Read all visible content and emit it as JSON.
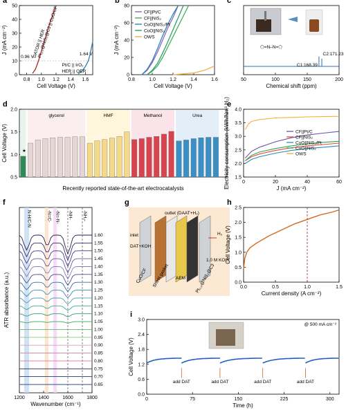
{
  "panels": [
    {
      "id": "a",
      "label": "a",
      "type": "line",
      "xlabel": "Cell Voltage (V)",
      "ylabel": "J (mA cm⁻²)",
      "xlim": [
        0.7,
        1.7
      ],
      "ylim": [
        0,
        50
      ],
      "xticks": [
        "0.8",
        "1.0",
        "1.2",
        "1.4",
        "1.6"
      ],
      "yticks": [
        "0",
        "10",
        "20",
        "30",
        "40",
        "50"
      ],
      "ref_line_y": 10,
      "annotations": [
        "DATOR || HER",
        "Pt₁,₀@NiS₂@C3 || CuO/CF",
        "0.96 V",
        "1.64 V",
        "Pt/C || IrO₂",
        "HER || OER"
      ],
      "series": [
        {
          "name": "DATOR || HER",
          "color": "#b22222",
          "x": [
            0.88,
            0.92,
            0.96,
            1.0,
            1.04,
            1.08,
            1.12,
            1.16,
            1.2
          ],
          "y": [
            1,
            4,
            10,
            17,
            24,
            31,
            38,
            44,
            50
          ]
        },
        {
          "name": "HER || OER",
          "color": "#2a7fa8",
          "x": [
            1.5,
            1.56,
            1.6,
            1.64,
            1.66,
            1.68,
            1.7
          ],
          "y": [
            0.5,
            3,
            6,
            10,
            14,
            19,
            24
          ]
        }
      ]
    },
    {
      "id": "b",
      "label": "b",
      "type": "line",
      "xlabel": "Cell Voltage (V)",
      "ylabel": "J (mA cm⁻²)",
      "xlim": [
        0.8,
        1.6
      ],
      "ylim": [
        0,
        80
      ],
      "xticks": [
        "0.8",
        "1.0",
        "1.2",
        "1.4",
        "1.6"
      ],
      "yticks": [
        "0",
        "20",
        "40",
        "60",
        "80"
      ],
      "series": [
        {
          "name": "CF||Pt/C",
          "color": "#8c6bb1",
          "x": [
            0.9,
            0.95,
            1.0,
            1.05,
            1.1,
            1.15,
            1.2,
            1.25
          ],
          "y": [
            0,
            5,
            14,
            26,
            40,
            54,
            66,
            80
          ]
        },
        {
          "name": "CF||NiS₂",
          "color": "#41ab5d",
          "x": [
            0.95,
            1.0,
            1.05,
            1.1,
            1.15,
            1.2,
            1.25,
            1.3,
            1.35
          ],
          "y": [
            0,
            4,
            10,
            20,
            32,
            44,
            56,
            68,
            80
          ]
        },
        {
          "name": "CuO||NiS₂/Pt",
          "color": "#3182bd",
          "x": [
            0.9,
            0.95,
            1.0,
            1.05,
            1.1,
            1.15,
            1.2,
            1.25
          ],
          "y": [
            0,
            6,
            16,
            30,
            45,
            58,
            70,
            80
          ]
        },
        {
          "name": "CuO||NiS₂",
          "color": "#2ca25f",
          "x": [
            0.95,
            1.0,
            1.05,
            1.1,
            1.15,
            1.2,
            1.25,
            1.3
          ],
          "y": [
            0,
            5,
            13,
            25,
            38,
            52,
            66,
            80
          ]
        },
        {
          "name": "OWS",
          "color": "#f0b040",
          "x": [
            1.2,
            1.3,
            1.4,
            1.5,
            1.6
          ],
          "y": [
            0,
            1,
            2,
            5,
            10
          ]
        }
      ]
    },
    {
      "id": "c",
      "label": "c",
      "type": "line",
      "xlabel": "Chemical shift (ppm)",
      "xlim": [
        50,
        200
      ],
      "xticks": [
        "50",
        "100",
        "150",
        "200"
      ],
      "peaks": [
        {
          "label": "C1:168.39",
          "x": 168.39,
          "h": 0.9
        },
        {
          "label": "C2:171.23",
          "x": 171.23,
          "h": 0.7
        }
      ]
    },
    {
      "id": "d",
      "label": "d",
      "type": "bar",
      "ylabel": "Cell Voltage (V)",
      "xlabel": "Recently reported state-of-the-art electrocatalysts",
      "ylim": [
        0.5,
        2.0
      ],
      "yticks": [
        "0.5",
        "1.0",
        "1.5",
        "2.0"
      ],
      "groups": [
        {
          "name": "",
          "color": "#2e8b57",
          "bg": "#e8f4ea",
          "values": [
            0.96
          ]
        },
        {
          "name": "glycerol",
          "color": "#e6d5d5",
          "bg": "#fbeeee",
          "values": [
            1.25,
            1.32,
            1.35,
            1.37,
            1.38,
            1.38,
            1.39,
            1.39
          ]
        },
        {
          "name": "HMF",
          "color": "#f5d98a",
          "bg": "#fff6dc",
          "values": [
            1.25,
            1.3,
            1.33,
            1.36,
            1.4,
            1.5
          ]
        },
        {
          "name": "Methanol",
          "color": "#d9434e",
          "bg": "#fbe3ea",
          "values": [
            1.33,
            1.35,
            1.38,
            1.4,
            1.45,
            1.51
          ]
        },
        {
          "name": "Urea",
          "color": "#3a8fc4",
          "bg": "#e3eff8",
          "values": [
            1.3,
            1.32,
            1.35,
            1.37,
            1.38,
            1.38
          ]
        }
      ]
    },
    {
      "id": "e",
      "label": "e",
      "type": "line",
      "xlabel": "J (mA cm⁻²)",
      "ylabel": "Electricity consumption (kWh/Nm³ H₂)",
      "xlim": [
        0,
        60
      ],
      "ylim": [
        1.5,
        4.0
      ],
      "xticks": [
        "0",
        "20",
        "40",
        "60"
      ],
      "yticks": [
        "1.5",
        "2.0",
        "2.5",
        "3.0",
        "3.5",
        "4.0"
      ],
      "series": [
        {
          "name": "CF||Pt/C",
          "color": "#6a51a3",
          "x": [
            1,
            5,
            10,
            20,
            30,
            40,
            50,
            60
          ],
          "y": [
            2.2,
            2.45,
            2.6,
            2.8,
            2.95,
            3.05,
            3.12,
            3.18
          ]
        },
        {
          "name": "CF||NiS₂",
          "color": "#e34a33",
          "x": [
            1,
            5,
            10,
            20,
            30,
            40,
            50,
            60
          ],
          "y": [
            2.1,
            2.25,
            2.35,
            2.48,
            2.58,
            2.65,
            2.7,
            2.75
          ]
        },
        {
          "name": "CuO||NiS₂/Pt",
          "color": "#2b8cbe",
          "x": [
            1,
            5,
            10,
            20,
            30,
            40,
            50,
            60
          ],
          "y": [
            2.0,
            2.15,
            2.25,
            2.38,
            2.48,
            2.55,
            2.6,
            2.65
          ]
        },
        {
          "name": "CuO||NiS₂",
          "color": "#31a354",
          "x": [
            1,
            5,
            10,
            20,
            30,
            40,
            50,
            60
          ],
          "y": [
            2.1,
            2.3,
            2.42,
            2.55,
            2.65,
            2.72,
            2.78,
            2.82
          ]
        },
        {
          "name": "OWS",
          "color": "#f2b134",
          "x": [
            1,
            3,
            5,
            10,
            20,
            30,
            40,
            50,
            60
          ],
          "y": [
            3.25,
            3.45,
            3.55,
            3.62,
            3.68,
            3.7,
            3.72,
            3.73,
            3.74
          ]
        }
      ]
    },
    {
      "id": "f",
      "label": "f",
      "type": "line",
      "xlabel": "Wavenumber (cm⁻¹)",
      "ylabel": "ATR absorbance (a.u.)",
      "xlim": [
        1200,
        1800
      ],
      "xticks": [
        "1200",
        "1400",
        "1600",
        "1800"
      ],
      "band_labels": [
        "N-H/C-N",
        "-N=C-",
        "-N=-N-",
        "-NH-",
        "-NH₂-"
      ],
      "voltages": [
        "1.60",
        "1.55",
        "1.50",
        "1.45",
        "1.40",
        "1.35",
        "1.30",
        "1.25",
        "1.20",
        "1.15",
        "1.10",
        "1.05",
        "1.00",
        "0.95",
        "0.90",
        "0.85",
        "0.80",
        "0.75",
        "0.70",
        "0.65"
      ],
      "colors": [
        "#2b1b4d",
        "#3e2a6e",
        "#4b3b86",
        "#6a5a9e",
        "#8a7bb5",
        "#4a4f8f",
        "#3b6ea5",
        "#3c8cb5",
        "#4aa0b0",
        "#3aaa9a",
        "#2e9a78",
        "#3aa860",
        "#5aba58",
        "#8ec96a",
        "#c7a7c8",
        "#d58aa8",
        "#e07a8a",
        "#1c2a55",
        "#223b6e",
        "#2d4e88"
      ]
    },
    {
      "id": "g",
      "label": "g",
      "labels": [
        "outlet (DAAT+H₂)",
        "inlet",
        "DAT+KOH",
        "CuO/CF",
        "Sheet gasket",
        "AEM",
        "Pt₁,₀@NiS₂@C3",
        "H₂",
        "1.0 M KOH"
      ]
    },
    {
      "id": "h",
      "label": "h",
      "type": "line",
      "xlabel": "Current density (A cm⁻²)",
      "ylabel": "Cell Voltage (V)",
      "xlim": [
        0,
        1.5
      ],
      "ylim": [
        0,
        2.5
      ],
      "xticks": [
        "0.0",
        "0.5",
        "1.0",
        "1.5"
      ],
      "yticks": [
        "0.0",
        "0.5",
        "1.0",
        "1.5",
        "2.0",
        "2.5"
      ],
      "marker_x": 1.0,
      "series": [
        {
          "name": "",
          "color": "#d2691e",
          "x": [
            0,
            0.02,
            0.05,
            0.1,
            0.2,
            0.4,
            0.6,
            0.8,
            1.0,
            1.2,
            1.4,
            1.5
          ],
          "y": [
            0.45,
            0.8,
            1.0,
            1.15,
            1.3,
            1.55,
            1.75,
            1.95,
            2.1,
            2.25,
            2.35,
            2.42
          ]
        }
      ]
    },
    {
      "id": "i",
      "label": "i",
      "type": "line",
      "xlabel": "Time (h)",
      "ylabel": "Cell Voltage (V)",
      "xlim": [
        0,
        315
      ],
      "ylim": [
        0,
        3.0
      ],
      "xticks": [
        "0",
        "75",
        "150",
        "225",
        "300"
      ],
      "yticks": [
        "0.0",
        "0.6",
        "1.2",
        "1.8",
        "2.4",
        "3.0"
      ],
      "annotation": "@ 500 mA cm⁻²",
      "events": [
        {
          "label": "add DAT",
          "x": 57
        },
        {
          "label": "add DAT",
          "x": 120
        },
        {
          "label": "add DAT",
          "x": 190
        },
        {
          "label": "add DAT",
          "x": 260
        }
      ],
      "segments": [
        [
          0,
          57
        ],
        [
          57,
          120
        ],
        [
          120,
          190
        ],
        [
          190,
          260
        ],
        [
          260,
          315
        ]
      ],
      "seg_start_v": 1.25,
      "seg_end_v": 1.45
    }
  ]
}
